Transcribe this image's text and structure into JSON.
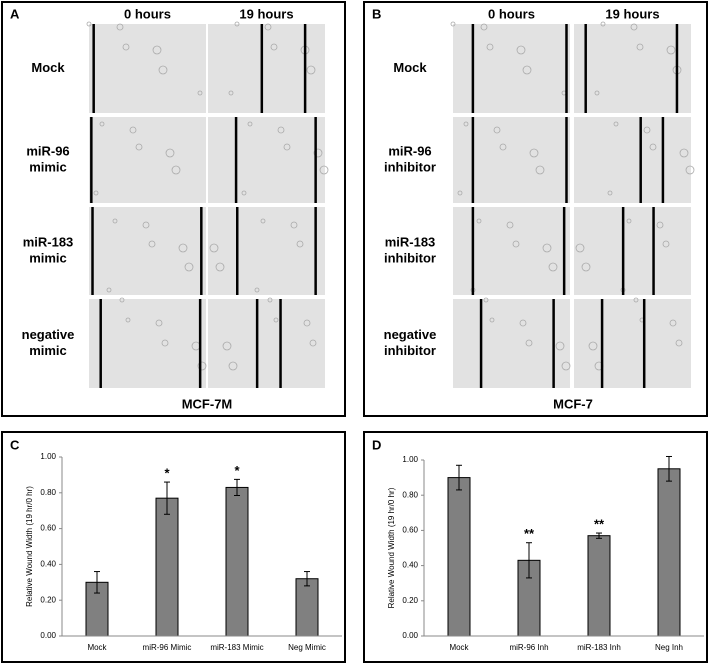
{
  "image_panels": [
    {
      "label": "A",
      "columns": [
        "0 hours",
        "19 hours"
      ],
      "rows": [
        [
          "Mock"
        ],
        [
          "miR-96",
          "mimic"
        ],
        [
          "miR-183",
          "mimic"
        ],
        [
          "negative",
          "mimic"
        ]
      ],
      "caption": "MCF-7M"
    },
    {
      "label": "B",
      "columns": [
        "0 hours",
        "19 hours"
      ],
      "rows": [
        [
          "Mock"
        ],
        [
          "miR-96",
          "inhibitor"
        ],
        [
          "miR-183",
          "inhibitor"
        ],
        [
          "negative",
          "inhibitor"
        ]
      ],
      "caption": "MCF-7"
    }
  ],
  "chart_data": [
    {
      "type": "bar",
      "panel_label": "C",
      "y_label": "Relative Wound Width (19 hr/0 hr)",
      "categories": [
        "Mock",
        "miR-96 Mimic",
        "miR-183 Mimic",
        "Neg Mimic"
      ],
      "values": [
        0.3,
        0.77,
        0.83,
        0.32
      ],
      "errors": [
        0.06,
        0.09,
        0.045,
        0.04
      ],
      "significance": [
        null,
        "*",
        "*",
        null
      ],
      "color": "#808080",
      "ylim": [
        0,
        1
      ],
      "yticks": [
        {
          "value": 0,
          "label": "0.00"
        },
        {
          "value": 0.2,
          "label": "0.20"
        },
        {
          "value": 0.4,
          "label": "0.40"
        },
        {
          "value": 0.6,
          "label": "0.60"
        },
        {
          "value": 0.8,
          "label": "0.80"
        },
        {
          "value": 1,
          "label": "1.00"
        }
      ]
    },
    {
      "type": "bar",
      "panel_label": "D",
      "y_label": "Relative Wound Width (19 hr/0 hr)",
      "categories": [
        "Mock",
        "miR-96 Inh",
        "miR-183 Inh",
        "Neg Inh"
      ],
      "values": [
        0.9,
        0.43,
        0.57,
        0.95
      ],
      "errors": [
        0.07,
        0.1,
        0.015,
        0.07
      ],
      "significance": [
        null,
        "**",
        "**",
        null
      ],
      "color": "#808080",
      "ylim": [
        0,
        1
      ],
      "yticks": [
        {
          "value": 0,
          "label": "0.00"
        },
        {
          "value": 0.2,
          "label": "0.20"
        },
        {
          "value": 0.4,
          "label": "0.40"
        },
        {
          "value": 0.6,
          "label": "0.60"
        },
        {
          "value": 0.8,
          "label": "0.80"
        },
        {
          "value": 1,
          "label": "1.00"
        }
      ]
    }
  ]
}
